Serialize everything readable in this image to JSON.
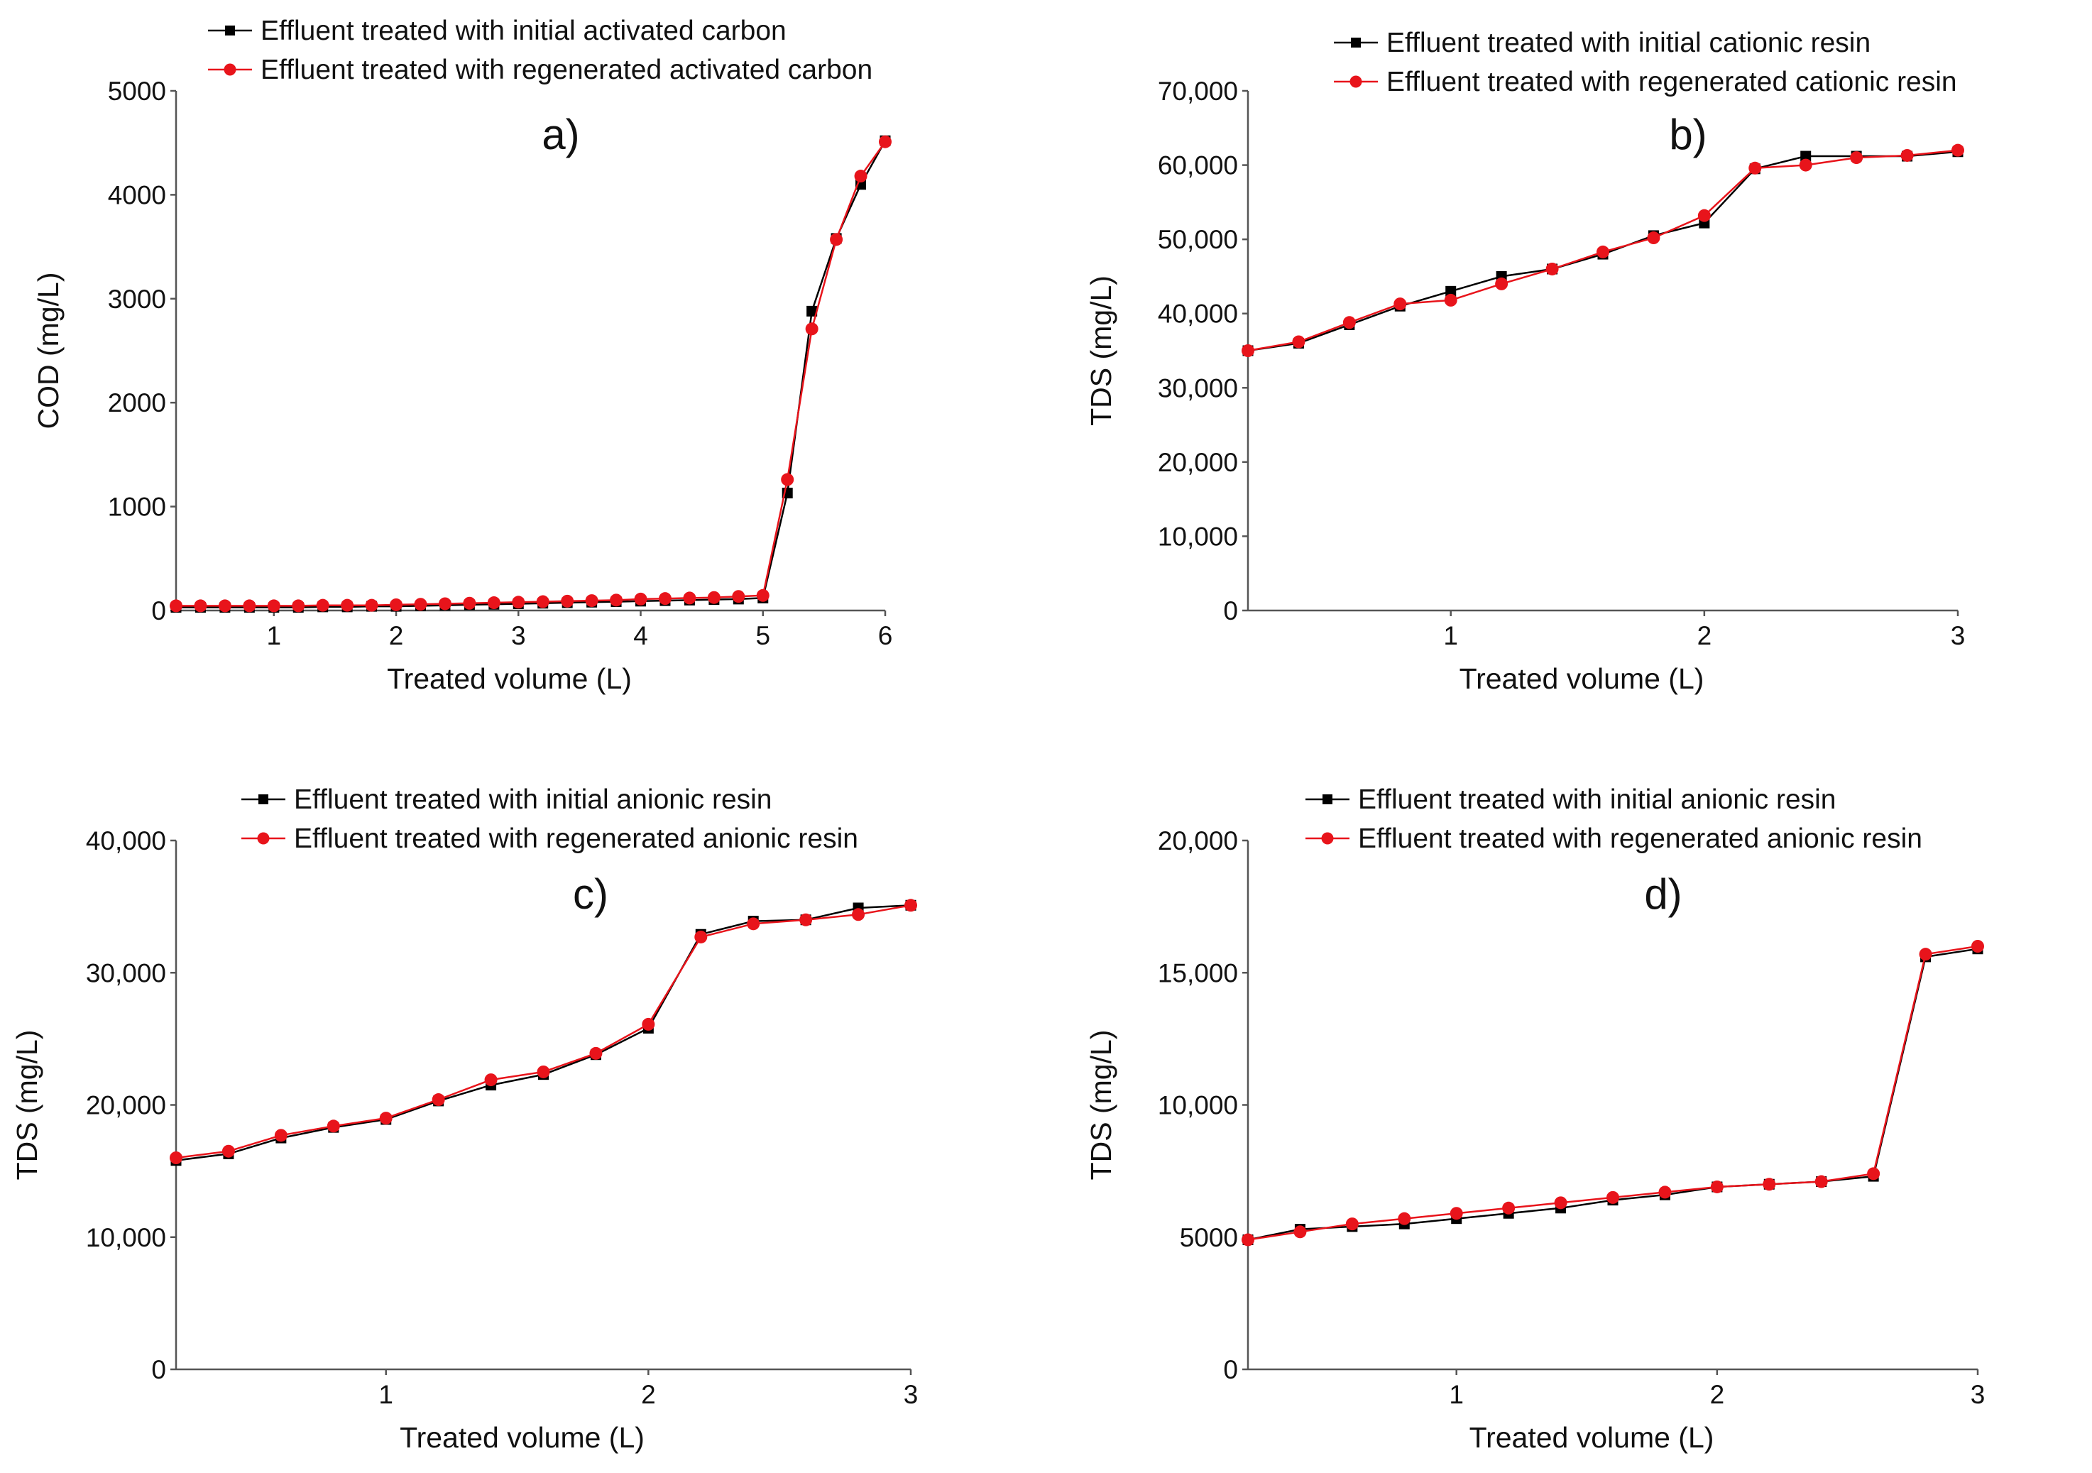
{
  "chart_data": [
    {
      "type": "line",
      "panel_label": "a)",
      "xlabel": "Treated volume (L)",
      "ylabel": "COD (mg/L)",
      "xlim": [
        0.2,
        6
      ],
      "ylim": [
        0,
        5000
      ],
      "xticks": [
        1,
        2,
        3,
        4,
        5,
        6
      ],
      "yticks": [
        0,
        1000,
        2000,
        3000,
        4000,
        5000
      ],
      "ytick_labels": [
        "0",
        "1000",
        "2000",
        "3000",
        "4000",
        "5000"
      ],
      "legend_position": "top",
      "grid": false,
      "series": [
        {
          "name": "Effluent treated with initial activated carbon",
          "color": "#000000",
          "marker": "square",
          "x": [
            0.2,
            0.4,
            0.6,
            0.8,
            1.0,
            1.2,
            1.4,
            1.6,
            1.8,
            2.0,
            2.2,
            2.4,
            2.6,
            2.8,
            3.0,
            3.2,
            3.4,
            3.6,
            3.8,
            4.0,
            4.2,
            4.4,
            4.6,
            4.8,
            5.0,
            5.2,
            5.4,
            5.6,
            5.8,
            6.0
          ],
          "y": [
            30,
            30,
            30,
            30,
            30,
            30,
            35,
            35,
            40,
            40,
            45,
            50,
            55,
            60,
            65,
            70,
            75,
            80,
            85,
            90,
            95,
            100,
            105,
            110,
            120,
            1130,
            2880,
            3580,
            4100,
            4520
          ]
        },
        {
          "name": "Effluent treated with regenerated activated carbon",
          "color": "#e8141b",
          "marker": "circle",
          "x": [
            0.2,
            0.4,
            0.6,
            0.8,
            1.0,
            1.2,
            1.4,
            1.6,
            1.8,
            2.0,
            2.2,
            2.4,
            2.6,
            2.8,
            3.0,
            3.2,
            3.4,
            3.6,
            3.8,
            4.0,
            4.2,
            4.4,
            4.6,
            4.8,
            5.0,
            5.2,
            5.4,
            5.6,
            5.8,
            6.0
          ],
          "y": [
            45,
            45,
            45,
            45,
            45,
            45,
            50,
            50,
            50,
            55,
            60,
            65,
            70,
            75,
            80,
            85,
            90,
            95,
            100,
            110,
            115,
            120,
            125,
            135,
            145,
            1260,
            2710,
            3570,
            4180,
            4510
          ]
        }
      ]
    },
    {
      "type": "line",
      "panel_label": "b)",
      "xlabel": "Treated volume (L)",
      "ylabel": "TDS (mg/L)",
      "xlim": [
        0.2,
        3
      ],
      "ylim": [
        0,
        70000
      ],
      "xticks": [
        1,
        2,
        3
      ],
      "yticks": [
        0,
        10000,
        20000,
        30000,
        40000,
        50000,
        60000,
        70000
      ],
      "ytick_labels": [
        "0",
        "10,000",
        "20,000",
        "30,000",
        "40,000",
        "50,000",
        "60,000",
        "70,000"
      ],
      "legend_position": "top-right",
      "grid": false,
      "series": [
        {
          "name": "Effluent treated with initial cationic resin",
          "color": "#000000",
          "marker": "square",
          "x": [
            0.2,
            0.4,
            0.6,
            0.8,
            1.0,
            1.2,
            1.4,
            1.6,
            1.8,
            2.0,
            2.2,
            2.4,
            2.6,
            2.8,
            3.0
          ],
          "y": [
            35000,
            36000,
            38500,
            41000,
            43000,
            45000,
            46000,
            48000,
            50500,
            52200,
            59500,
            61200,
            61200,
            61200,
            61800
          ]
        },
        {
          "name": "Effluent treated with regenerated cationic resin",
          "color": "#e8141b",
          "marker": "circle",
          "x": [
            0.2,
            0.4,
            0.6,
            0.8,
            1.0,
            1.2,
            1.4,
            1.6,
            1.8,
            2.0,
            2.2,
            2.4,
            2.6,
            2.8,
            3.0
          ],
          "y": [
            35000,
            36200,
            38800,
            41300,
            41800,
            44000,
            46000,
            48300,
            50200,
            53200,
            59600,
            60000,
            61000,
            61300,
            62000
          ]
        }
      ]
    },
    {
      "type": "line",
      "panel_label": "c)",
      "xlabel": "Treated volume (L)",
      "ylabel": "TDS (mg/L)",
      "xlim": [
        0.2,
        3
      ],
      "ylim": [
        0,
        40000
      ],
      "xticks": [
        1,
        2,
        3
      ],
      "yticks": [
        0,
        10000,
        20000,
        30000,
        40000
      ],
      "ytick_labels": [
        "0",
        "10,000",
        "20,000",
        "30,000",
        "40,000"
      ],
      "legend_position": "top",
      "grid": false,
      "series": [
        {
          "name": "Effluent treated with initial anionic resin",
          "color": "#000000",
          "marker": "square",
          "x": [
            0.2,
            0.4,
            0.6,
            0.8,
            1.0,
            1.2,
            1.4,
            1.6,
            1.8,
            2.0,
            2.2,
            2.4,
            2.6,
            2.8,
            3.0
          ],
          "y": [
            15800,
            16300,
            17500,
            18300,
            18900,
            20300,
            21500,
            22300,
            23800,
            25800,
            32900,
            33900,
            34000,
            34900,
            35100
          ]
        },
        {
          "name": "Effluent treated with regenerated anionic resin",
          "color": "#e8141b",
          "marker": "circle",
          "x": [
            0.2,
            0.4,
            0.6,
            0.8,
            1.0,
            1.2,
            1.4,
            1.6,
            1.8,
            2.0,
            2.2,
            2.4,
            2.6,
            2.8,
            3.0
          ],
          "y": [
            16000,
            16500,
            17700,
            18400,
            19000,
            20400,
            21900,
            22500,
            23900,
            26100,
            32700,
            33700,
            34000,
            34400,
            35100
          ]
        }
      ]
    },
    {
      "type": "line",
      "panel_label": "d)",
      "xlabel": "Treated volume (L)",
      "ylabel": "TDS (mg/L)",
      "xlim": [
        0.2,
        3
      ],
      "ylim": [
        0,
        20000
      ],
      "xticks": [
        1,
        2,
        3
      ],
      "yticks": [
        0,
        5000,
        10000,
        15000,
        20000
      ],
      "ytick_labels": [
        "0",
        "5000",
        "10,000",
        "15,000",
        "20,000"
      ],
      "legend_position": "top-right",
      "grid": false,
      "series": [
        {
          "name": "Effluent treated with initial anionic resin",
          "color": "#000000",
          "marker": "square",
          "x": [
            0.2,
            0.4,
            0.6,
            0.8,
            1.0,
            1.2,
            1.4,
            1.6,
            1.8,
            2.0,
            2.2,
            2.4,
            2.6,
            2.8,
            3.0
          ],
          "y": [
            4900,
            5300,
            5400,
            5500,
            5700,
            5900,
            6100,
            6400,
            6600,
            6900,
            7000,
            7100,
            7300,
            15600,
            15900
          ]
        },
        {
          "name": "Effluent treated with regenerated anionic resin",
          "color": "#e8141b",
          "marker": "circle",
          "x": [
            0.2,
            0.4,
            0.6,
            0.8,
            1.0,
            1.2,
            1.4,
            1.6,
            1.8,
            2.0,
            2.2,
            2.4,
            2.6,
            2.8,
            3.0
          ],
          "y": [
            4900,
            5200,
            5500,
            5700,
            5900,
            6100,
            6300,
            6500,
            6700,
            6900,
            7000,
            7100,
            7400,
            15700,
            16000
          ]
        }
      ]
    }
  ]
}
